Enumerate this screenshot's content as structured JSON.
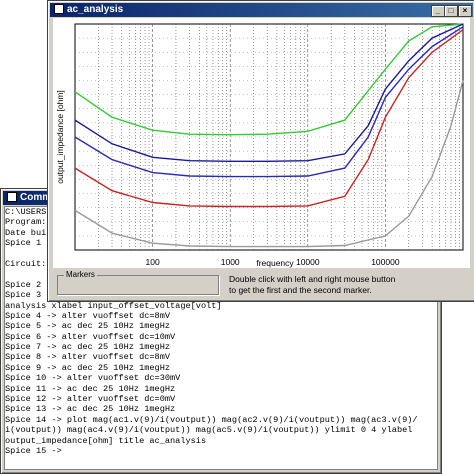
{
  "command_window": {
    "title": "Comman",
    "lines": [
      "C:\\USERS",
      "Program:",
      "Date bui",
      "Spice 1",
      "",
      "Circuit:",
      "",
      "Spice 2",
      "Spice 3",
      "analysis xlabel input_offset_voltage[volt]",
      "Spice 4 -> alter vuoffset dc=8mV",
      "Spice 5 -> ac dec 25 10Hz 1megHz",
      "Spice 6 -> alter vuoffset dc=10mV",
      "Spice 7 -> ac dec 25 10Hz 1megHz",
      "Spice 8 -> alter vuoffset dc=8mV",
      "Spice 9 -> ac dec 25 10Hz 1megHz",
      "Spice 10 -> alter vuoffset dc=30mV",
      "Spice 11 -> ac dec 25 10Hz 1megHz",
      "Spice 12 -> alter vuoffset dc=0mV",
      "Spice 13 -> ac dec 25 10Hz 1megHz",
      "Spice 14 -> plot mag(ac1.v(9)/i(voutput)) mag(ac2.v(9)/i(voutput)) mag(ac3.v(9)/",
      "i(voutput)) mag(ac4.v(9)/i(voutput)) mag(ac5.v(9)/i(voutput)) ylimit 0 4 ylabel",
      "output_impedance[ohm] title ac_analysis",
      "Spice 15 ->"
    ]
  },
  "ac_window": {
    "title": "ac_analysis",
    "buttons": {
      "minimize": "_",
      "maximize": "□",
      "close": "×"
    },
    "markers_label": "Markers",
    "marker_message": "Double click with left and right mouse button\nto get the first and the second marker."
  },
  "chart_data": {
    "type": "line",
    "title": "",
    "xlabel": "frequency",
    "ylabel": "output_impedance [ohm]",
    "x_scale": "log",
    "xlim": [
      10,
      1000000
    ],
    "ylim": [
      0,
      4
    ],
    "x_tick_labels": [
      "100",
      "1000",
      "10000",
      "100000"
    ],
    "grid": true,
    "series": [
      {
        "color": "#33cc33",
        "x": [
          10,
          30,
          100,
          300,
          1000,
          3000,
          10000,
          30000,
          100000,
          200000,
          400000,
          1000000
        ],
        "y": [
          2.8,
          2.35,
          2.12,
          2.05,
          2.04,
          2.05,
          2.1,
          2.3,
          3.2,
          3.7,
          3.95,
          4.0
        ]
      },
      {
        "color": "#1a1a99",
        "x": [
          10,
          30,
          100,
          300,
          1000,
          3000,
          10000,
          30000,
          60000,
          100000,
          200000,
          400000,
          1000000
        ],
        "y": [
          2.3,
          1.88,
          1.64,
          1.58,
          1.57,
          1.57,
          1.58,
          1.7,
          2.2,
          2.85,
          3.35,
          3.75,
          4.0
        ]
      },
      {
        "color": "#2a2ab8",
        "x": [
          10,
          30,
          100,
          300,
          1000,
          3000,
          10000,
          30000,
          60000,
          100000,
          200000,
          400000,
          1000000
        ],
        "y": [
          2.0,
          1.6,
          1.37,
          1.31,
          1.3,
          1.3,
          1.31,
          1.45,
          2.0,
          2.7,
          3.2,
          3.6,
          3.95
        ]
      },
      {
        "color": "#cc2222",
        "x": [
          10,
          30,
          100,
          300,
          1000,
          3000,
          10000,
          30000,
          60000,
          100000,
          200000,
          400000,
          1000000
        ],
        "y": [
          1.45,
          1.05,
          0.84,
          0.78,
          0.77,
          0.77,
          0.78,
          0.95,
          1.6,
          2.35,
          3.05,
          3.5,
          3.9
        ]
      },
      {
        "color": "#999999",
        "x": [
          10,
          30,
          100,
          300,
          1000,
          3000,
          10000,
          30000,
          100000,
          200000,
          400000,
          700000,
          1000000
        ],
        "y": [
          0.7,
          0.3,
          0.12,
          0.07,
          0.06,
          0.06,
          0.06,
          0.08,
          0.25,
          0.6,
          1.3,
          2.2,
          3.0
        ]
      }
    ]
  }
}
